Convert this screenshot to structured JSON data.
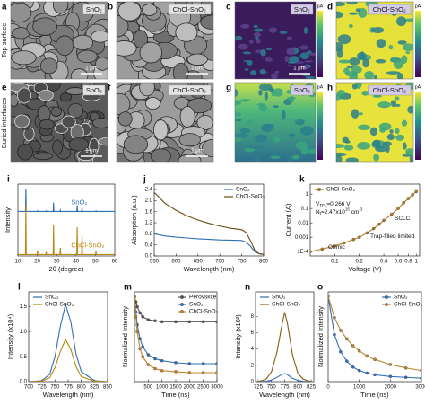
{
  "row_labels": [
    "Top surface",
    "Buried interfaces"
  ],
  "panels": [
    {
      "label": "a",
      "tag": "SnO₂",
      "scalebar": "1 μm"
    },
    {
      "label": "b",
      "tag": "ChCl-SnO₂",
      "scalebar": "1 μm"
    },
    {
      "label": "c",
      "tag": "SnO₂",
      "scalebar": "1 μm",
      "colorbar_unit": "pA"
    },
    {
      "label": "d",
      "tag": "ChCl-SnO₂",
      "colorbar_unit": "pA"
    },
    {
      "label": "e",
      "tag": "SnO₂",
      "scalebar": "1 μm"
    },
    {
      "label": "f",
      "tag": "ChCl-SnO₂",
      "scalebar": "1 μm"
    },
    {
      "label": "g",
      "tag": "SnO₂",
      "colorbar_unit": "pA"
    },
    {
      "label": "h",
      "tag": "ChCl-SnO₂",
      "colorbar_unit": "pA"
    }
  ],
  "chart_data": [
    {
      "type": "line",
      "label": "i",
      "xlabel": "2θ (degree)",
      "ylabel": "Intensity",
      "legend": "inline",
      "xlim": [
        10,
        60
      ],
      "xticks": [
        10,
        20,
        30,
        40,
        50,
        60
      ],
      "ylim": [
        0,
        10.5
      ],
      "x": [
        10,
        13.9,
        14.1,
        14.3,
        19.9,
        20.1,
        20.3,
        24.4,
        24.6,
        24.8,
        28.2,
        28.4,
        28.6,
        31.7,
        31.9,
        32.1,
        35,
        40.4,
        40.6,
        40.8,
        42.9,
        43.1,
        43.3,
        50.1,
        50.3,
        50.5,
        60
      ],
      "series": [
        {
          "name": "SnO₂",
          "color": "#2f6fb5",
          "values": [
            6.5,
            6.5,
            9.8,
            6.5,
            6.5,
            6.6,
            6.5,
            6.5,
            6.6,
            6.5,
            6.5,
            7.8,
            6.5,
            6.5,
            6.7,
            6.5,
            6.5,
            6.5,
            7.4,
            6.5,
            6.5,
            7.1,
            6.5,
            6.5,
            6.6,
            6.5,
            6.5
          ]
        },
        {
          "name": "ChCl-SnO₂",
          "color": "#b8860b",
          "values": [
            0.2,
            0.2,
            7.5,
            0.2,
            0.2,
            0.8,
            0.2,
            0.2,
            0.6,
            0.2,
            0.2,
            4.5,
            0.2,
            0.2,
            1.2,
            0.2,
            0.2,
            0.2,
            4.2,
            0.2,
            0.2,
            3.2,
            0.2,
            0.2,
            0.7,
            0.2,
            0.2
          ]
        }
      ]
    },
    {
      "type": "line",
      "label": "j",
      "xlabel": "Wavelength (nm)",
      "ylabel": "Absorption (a.u.)",
      "legend": "upper right",
      "xlim": [
        550,
        800
      ],
      "xticks": [
        550,
        600,
        650,
        700,
        750,
        800
      ],
      "ylim": [
        0,
        2.6
      ],
      "yticks": [
        {
          "value": 0,
          "label": "0.0"
        },
        0.4,
        0.8,
        1.2,
        1.6,
        {
          "value": 2,
          "label": "2.0"
        },
        2.4
      ],
      "x": [
        550,
        575,
        600,
        625,
        650,
        675,
        700,
        725,
        750,
        760,
        770,
        780,
        790,
        800
      ],
      "series": [
        {
          "name": "SnO₂",
          "color": "#2f6fb5",
          "values": [
            0.8,
            0.72,
            0.68,
            0.65,
            0.62,
            0.6,
            0.58,
            0.57,
            0.56,
            0.5,
            0.35,
            0.15,
            0.08,
            0.06
          ]
        },
        {
          "name": "ChCl-SnO₂",
          "color": "#6b4a12",
          "values": [
            2.3,
            1.9,
            1.65,
            1.45,
            1.3,
            1.18,
            1.08,
            1.0,
            0.95,
            0.85,
            0.55,
            0.2,
            0.08,
            0.06
          ]
        }
      ]
    },
    {
      "type": "scatter",
      "label": "k",
      "xlabel": "Voltage (V)",
      "ylabel": "Current (A)",
      "legend": "upper left",
      "marker": true,
      "xscale": "log",
      "yscale": "log",
      "xlim": [
        0.05,
        1.1
      ],
      "xticks": [
        0.1,
        0.2,
        0.4,
        0.6,
        0.8,
        1
      ],
      "ylim": [
        5e-05,
        5
      ],
      "yticks": [
        {
          "value": 0.0001,
          "label": "1E-4"
        },
        0.001,
        0.01,
        0.1,
        1
      ],
      "x": [
        0.05,
        0.07,
        0.1,
        0.13,
        0.17,
        0.2,
        0.25,
        0.3,
        0.35,
        0.4,
        0.5,
        0.6,
        0.7,
        0.8,
        0.9,
        1.0
      ],
      "series": [
        {
          "name": "ChCl-SnO₂",
          "color": "#b07a1e",
          "values": [
            0.0001,
            0.00015,
            0.00025,
            0.0004,
            0.0007,
            0.001,
            0.002,
            0.004,
            0.008,
            0.015,
            0.04,
            0.1,
            0.25,
            0.5,
            0.9,
            1.5
          ]
        }
      ],
      "annotations": [
        [
          {
            "text": "V"
          },
          {
            "text": "TFL",
            "sub": true
          },
          {
            "text": "=0.266 V"
          }
        ],
        [
          {
            "text": "N"
          },
          {
            "text": "t",
            "sub": true
          },
          {
            "text": "=2.47x10"
          },
          {
            "text": "15",
            "sup": true
          },
          {
            "text": " cm"
          },
          {
            "text": "-3",
            "sup": true
          }
        ],
        [
          {
            "text": "SCLC"
          }
        ],
        [
          {
            "text": "Trap-filled limited"
          }
        ],
        [
          {
            "text": "Ohmic"
          }
        ]
      ]
    },
    {
      "type": "line",
      "label": "l",
      "xlabel": "Wavelength (nm)",
      "ylabel": "Intensity (x10⁴)",
      "legend": "upper left",
      "xlim": [
        700,
        850
      ],
      "xticks": [
        700,
        725,
        750,
        775,
        800,
        825,
        850
      ],
      "ylim": [
        0,
        1.8
      ],
      "yticks": [
        {
          "value": 0,
          "label": "0.0"
        },
        0.5,
        {
          "value": 1,
          "label": "1.0"
        },
        1.5
      ],
      "x": [
        700,
        725,
        740,
        750,
        760,
        770,
        780,
        790,
        800,
        825,
        850
      ],
      "series": [
        {
          "name": "SnO₂",
          "color": "#2f6fb5",
          "values": [
            0,
            0.02,
            0.15,
            0.5,
            1.1,
            1.55,
            1.2,
            0.55,
            0.2,
            0.02,
            0
          ]
        },
        {
          "name": "ChCl-SnO₂",
          "color": "#b8860b",
          "values": [
            0,
            0.01,
            0.08,
            0.28,
            0.6,
            0.85,
            0.65,
            0.3,
            0.1,
            0.01,
            0
          ]
        }
      ]
    },
    {
      "type": "scatter",
      "label": "m",
      "xlabel": "Time (ns)",
      "ylabel": "Normalized Intensity",
      "legend": "upper right",
      "marker": true,
      "xlim": [
        0,
        3000
      ],
      "xticks": [
        500,
        1000,
        1500,
        2000,
        2500,
        3000
      ],
      "ylim": [
        0.15,
        1.05
      ],
      "x": [
        0,
        50,
        100,
        200,
        300,
        500,
        750,
        1000,
        1500,
        2000,
        2500,
        3000
      ],
      "series": [
        {
          "name": "Perovskite",
          "color": "#555555",
          "values": [
            1,
            0.95,
            0.9,
            0.84,
            0.8,
            0.77,
            0.76,
            0.75,
            0.75,
            0.75,
            0.75,
            0.75
          ]
        },
        {
          "name": "SnO₂",
          "color": "#2f6fb5",
          "values": [
            1,
            0.85,
            0.72,
            0.58,
            0.5,
            0.42,
            0.38,
            0.36,
            0.34,
            0.33,
            0.33,
            0.33
          ]
        },
        {
          "name": "ChCl-SnO₂",
          "color": "#c8842c",
          "values": [
            1,
            0.8,
            0.65,
            0.48,
            0.4,
            0.32,
            0.28,
            0.26,
            0.25,
            0.24,
            0.24,
            0.24
          ]
        }
      ]
    },
    {
      "type": "line",
      "label": "n",
      "xlabel": "Wavelength (nm)",
      "ylabel": "Intensity (x10³)",
      "legend": "upper left",
      "xlim": [
        720,
        830
      ],
      "xticks": [
        725,
        750,
        775,
        800,
        825
      ],
      "ylim": [
        0,
        11
      ],
      "yticks": [
        0,
        2,
        4,
        6,
        8
      ],
      "x": [
        725,
        740,
        750,
        760,
        770,
        775,
        780,
        790,
        800,
        810,
        825
      ],
      "series": [
        {
          "name": "SnO₂",
          "color": "#2f6fb5",
          "values": [
            0,
            0.05,
            0.2,
            0.5,
            0.9,
            1.0,
            0.85,
            0.4,
            0.15,
            0.05,
            0
          ]
        },
        {
          "name": "ChCl-SnO₂",
          "color": "#8a5a12",
          "values": [
            0,
            0.3,
            1.2,
            3.5,
            7,
            8.5,
            7.2,
            3.2,
            1.0,
            0.3,
            0
          ]
        }
      ]
    },
    {
      "type": "scatter",
      "label": "o",
      "xlabel": "Time (ns)",
      "ylabel": "Normalized Intensity",
      "legend": "upper right",
      "marker": true,
      "xlim": [
        0,
        3000
      ],
      "xticks": [
        0,
        1000,
        2000,
        3000
      ],
      "ylim": [
        0,
        1.05
      ],
      "x": [
        0,
        200,
        400,
        600,
        800,
        1000,
        1250,
        1500,
        2000,
        2500,
        3000
      ],
      "series": [
        {
          "name": "SnO₂",
          "color": "#2f6fb5",
          "values": [
            1,
            0.55,
            0.35,
            0.24,
            0.17,
            0.13,
            0.1,
            0.08,
            0.06,
            0.05,
            0.04
          ]
        },
        {
          "name": "ChCl-SnO₂",
          "color": "#b8862c",
          "values": [
            1,
            0.75,
            0.6,
            0.5,
            0.42,
            0.36,
            0.3,
            0.26,
            0.2,
            0.16,
            0.13
          ]
        }
      ]
    }
  ]
}
